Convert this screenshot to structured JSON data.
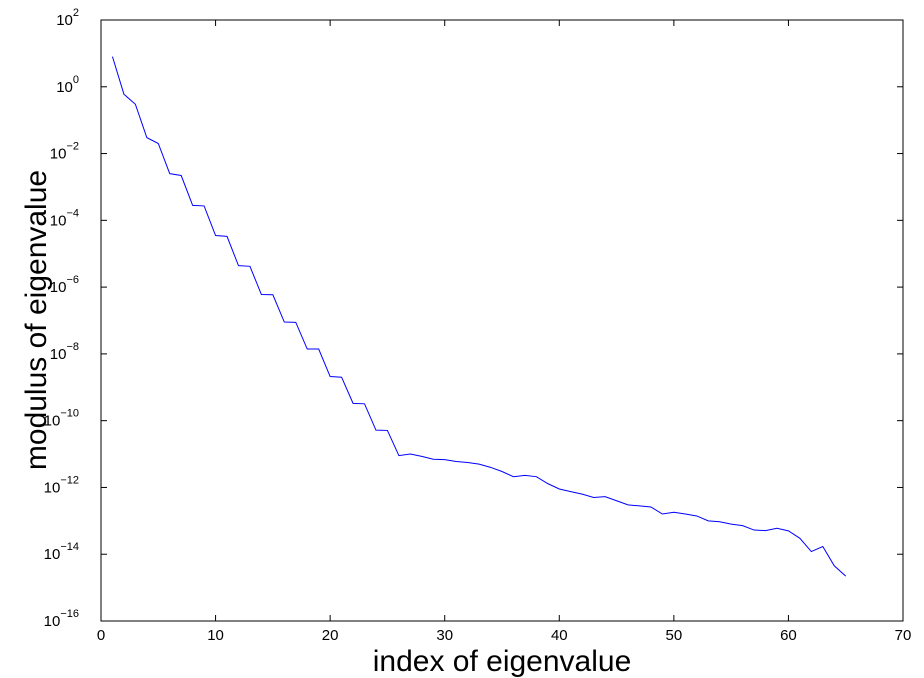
{
  "chart_data": {
    "type": "line",
    "title": "",
    "xlabel": "index of eigenvalue",
    "ylabel": "modulus of eigenvalue",
    "xlim": [
      0,
      70
    ],
    "ylim": [
      1e-16,
      100
    ],
    "yscale": "log",
    "grid": false,
    "line_color": "#0000ff",
    "x_ticks": [
      {
        "value": 0,
        "label": "0"
      },
      {
        "value": 10,
        "label": "10"
      },
      {
        "value": 20,
        "label": "20"
      },
      {
        "value": 30,
        "label": "30"
      },
      {
        "value": 40,
        "label": "40"
      },
      {
        "value": 50,
        "label": "50"
      },
      {
        "value": 60,
        "label": "60"
      },
      {
        "value": 70,
        "label": "70"
      }
    ],
    "y_ticks": [
      {
        "exp": -16,
        "base": "10",
        "sup": "−16"
      },
      {
        "exp": -14,
        "base": "10",
        "sup": "−14"
      },
      {
        "exp": -12,
        "base": "10",
        "sup": "−12"
      },
      {
        "exp": -10,
        "base": "10",
        "sup": "−10"
      },
      {
        "exp": -8,
        "base": "10",
        "sup": "−8"
      },
      {
        "exp": -6,
        "base": "10",
        "sup": "−6"
      },
      {
        "exp": -4,
        "base": "10",
        "sup": "−4"
      },
      {
        "exp": -2,
        "base": "10",
        "sup": "−2"
      },
      {
        "exp": 0,
        "base": "10",
        "sup": "0"
      },
      {
        "exp": 2,
        "base": "10",
        "sup": "2"
      }
    ],
    "series": [
      {
        "x": [
          1,
          2,
          3,
          4,
          5,
          6,
          7,
          8,
          9,
          10,
          11,
          12,
          13,
          14,
          15,
          16,
          17,
          18,
          19,
          20,
          21,
          22,
          23,
          24,
          25,
          26,
          27,
          28,
          29,
          30,
          31,
          32,
          33,
          34,
          35,
          36,
          37,
          38,
          39,
          40,
          41,
          42,
          43,
          44,
          45,
          46,
          47,
          48,
          49,
          50,
          51,
          52,
          53,
          54,
          55,
          56,
          57,
          58,
          59,
          60,
          61,
          62,
          63,
          64,
          65
        ],
        "y": [
          8,
          0.6,
          0.3,
          0.03,
          0.02,
          0.0025,
          0.0022,
          0.00028,
          0.00027,
          3.5e-05,
          3.3e-05,
          4.4e-06,
          4.2e-06,
          6e-07,
          5.9e-07,
          9e-08,
          8.8e-08,
          1.4e-08,
          1.4e-08,
          2.1e-09,
          2e-09,
          3.3e-10,
          3.2e-10,
          5.2e-11,
          5.1e-11,
          9e-12,
          1e-11,
          8.5e-12,
          7e-12,
          6.8e-12,
          6e-12,
          5.6e-12,
          5e-12,
          4e-12,
          3e-12,
          2.1e-12,
          2.3e-12,
          2.1e-12,
          1.3e-12,
          9e-13,
          7.5e-13,
          6.3e-13,
          5e-13,
          5.3e-13,
          4e-13,
          3e-13,
          2.8e-13,
          2.6e-13,
          1.6e-13,
          1.8e-13,
          1.6e-13,
          1.4e-13,
          1e-13,
          9.4e-14,
          8e-14,
          7.2e-14,
          5.3e-14,
          5.1e-14,
          6e-14,
          5e-14,
          3e-14,
          1.2e-14,
          1.7e-14,
          4.5e-15,
          2.2e-15
        ]
      }
    ]
  }
}
